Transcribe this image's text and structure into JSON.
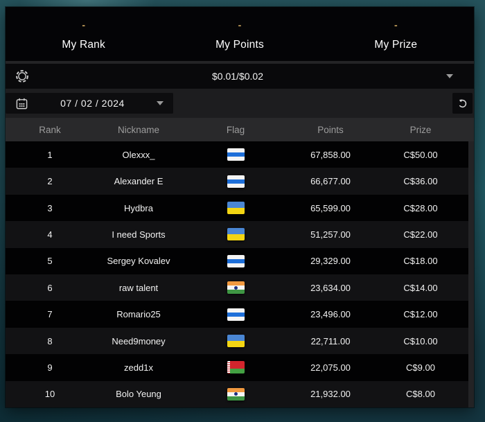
{
  "summary": {
    "items": [
      {
        "value": "-",
        "label": "My Rank"
      },
      {
        "value": "-",
        "label": "My Points"
      },
      {
        "value": "-",
        "label": "My Prize"
      }
    ]
  },
  "filters": {
    "blinds": {
      "value": "$0.01/$0.02",
      "icon": "chip-icon",
      "caret_icon": "chevron-down-icon"
    },
    "date": {
      "value": "07 / 02 / 2024",
      "icon": "calendar-icon",
      "caret_icon": "chevron-down-icon"
    },
    "refresh_icon": "refresh-icon"
  },
  "table": {
    "columns": [
      "Rank",
      "Nickname",
      "Flag",
      "Points",
      "Prize"
    ],
    "rows": [
      {
        "rank": "1",
        "nickname": "Olexxx_",
        "flag": "white-blue-white",
        "points": "67,858.00",
        "prize": "C$50.00"
      },
      {
        "rank": "2",
        "nickname": "Alexander E",
        "flag": "white-blue-white",
        "points": "66,677.00",
        "prize": "C$36.00"
      },
      {
        "rank": "3",
        "nickname": "Hydbra",
        "flag": "ukraine",
        "points": "65,599.00",
        "prize": "C$28.00"
      },
      {
        "rank": "4",
        "nickname": "I need Sports",
        "flag": "ukraine",
        "points": "51,257.00",
        "prize": "C$22.00"
      },
      {
        "rank": "5",
        "nickname": "Sergey Kovalev",
        "flag": "white-blue-white",
        "points": "29,329.00",
        "prize": "C$18.00"
      },
      {
        "rank": "6",
        "nickname": "raw talent",
        "flag": "india",
        "points": "23,634.00",
        "prize": "C$14.00"
      },
      {
        "rank": "7",
        "nickname": "Romario25",
        "flag": "white-blue-white",
        "points": "23,496.00",
        "prize": "C$12.00"
      },
      {
        "rank": "8",
        "nickname": "Need9money",
        "flag": "ukraine",
        "points": "22,711.00",
        "prize": "C$10.00"
      },
      {
        "rank": "9",
        "nickname": "zedd1x",
        "flag": "belarus",
        "points": "22,075.00",
        "prize": "C$9.00"
      },
      {
        "rank": "10",
        "nickname": "Bolo Yeung",
        "flag": "india",
        "points": "21,932.00",
        "prize": "C$8.00"
      }
    ]
  },
  "colors": {
    "accent_gold": "#c9a45e",
    "panel_black": "#040406",
    "row_black": "#020203",
    "row_alt": "#121214",
    "table_header_bg": "#29292b",
    "background_teal": "#1c454e",
    "flag_blue": "#1e6fd9",
    "ukraine_blue": "#4a86d3",
    "ukraine_yellow": "#f3d513",
    "india_saffron": "#f1993f",
    "india_green": "#3f9644",
    "belarus_red": "#d2252d",
    "belarus_green": "#43a143"
  }
}
